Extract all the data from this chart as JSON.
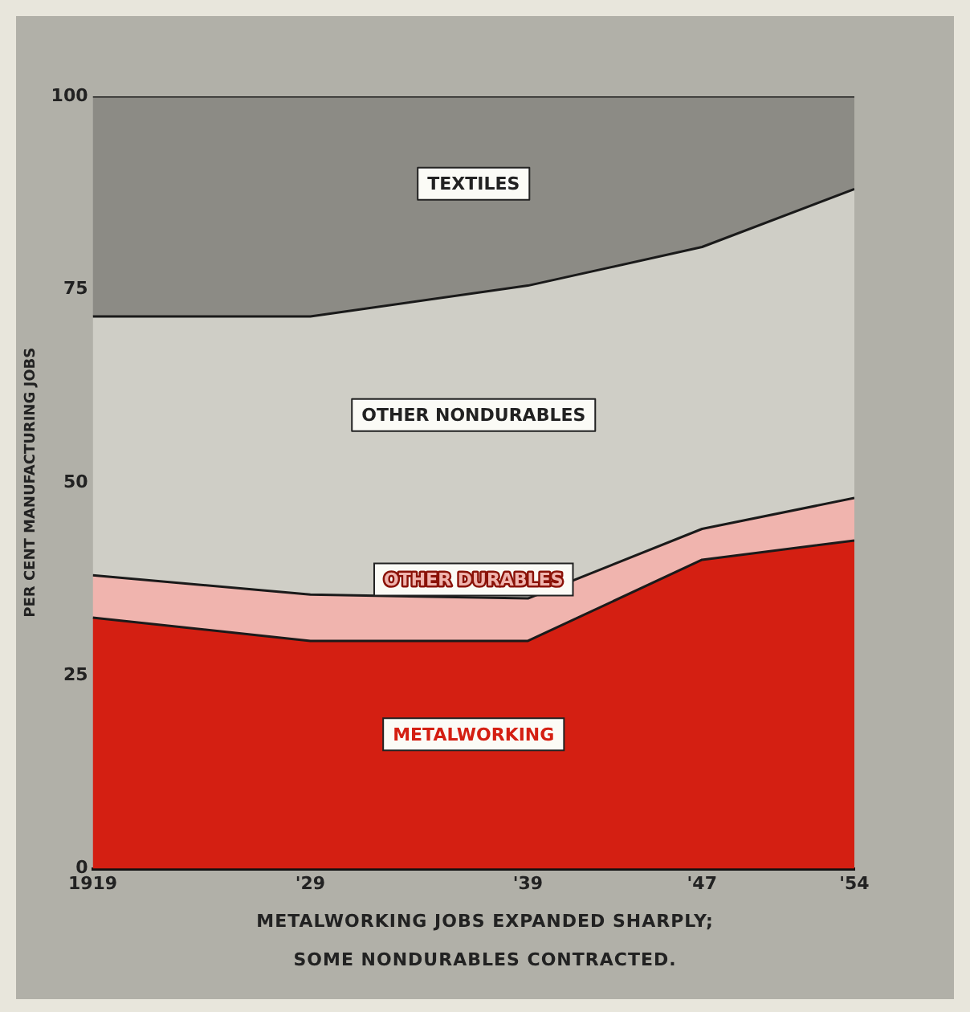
{
  "chart_data": {
    "type": "area",
    "stacked": true,
    "ylabel": "PER CENT MANUFACTURING JOBS",
    "x": [
      1919,
      1929,
      1939,
      1947,
      1954
    ],
    "xlim": [
      1919,
      1954
    ],
    "xticks": [
      {
        "value": 1919,
        "label": "1919"
      },
      {
        "value": 1929,
        "label": "'29"
      },
      {
        "value": 1939,
        "label": "'39"
      },
      {
        "value": 1947,
        "label": "'47"
      },
      {
        "value": 1954,
        "label": "'54"
      }
    ],
    "ylim": [
      0,
      100
    ],
    "yticks": [
      0,
      25,
      50,
      75,
      100
    ],
    "grid": false,
    "legend": false,
    "series": [
      {
        "name": "METALWORKING",
        "color": "#d41f12",
        "values": [
          32.5,
          29.5,
          29.5,
          40,
          42.5
        ]
      },
      {
        "name": "OTHER DURABLES",
        "color": "#f0b4ae",
        "values": [
          5.5,
          6,
          5.5,
          4,
          5.5
        ]
      },
      {
        "name": "OTHER NONDURABLES",
        "color": "#cfcec6",
        "values": [
          33.5,
          36,
          40.5,
          36.5,
          40
        ]
      },
      {
        "name": "TEXTILES",
        "color": "#8c8b85",
        "values": [
          28.5,
          28.5,
          24.5,
          19.5,
          12
        ]
      }
    ],
    "annotations": [
      "METALWORKING JOBS EXPANDED SHARPLY;",
      "SOME NONDURABLES CONTRACTED."
    ]
  }
}
